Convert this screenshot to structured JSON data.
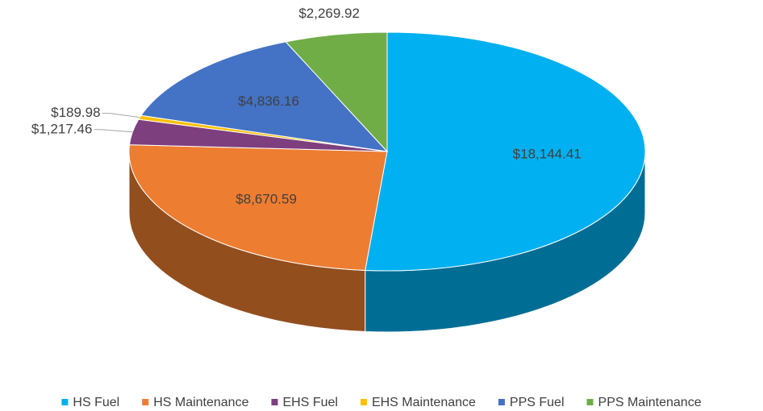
{
  "chart_data": {
    "type": "pie3d",
    "categories": [
      "HS Fuel",
      "HS Maintenance",
      "EHS Fuel",
      "EHS Maintenance",
      "PPS Fuel",
      "PPS Maintenance"
    ],
    "values": [
      18144.41,
      8670.59,
      1217.46,
      189.98,
      4836.16,
      2269.92
    ],
    "value_labels": [
      "$18,144.41",
      "$8,670.59",
      "$1,217.46",
      "$189.98",
      "$4,836.16",
      "$2,269.92"
    ],
    "colors": [
      "#00b0f0",
      "#ed7d31",
      "#7e3f7e",
      "#ffc000",
      "#4472c4",
      "#70ad47"
    ],
    "legend": "bottom"
  }
}
